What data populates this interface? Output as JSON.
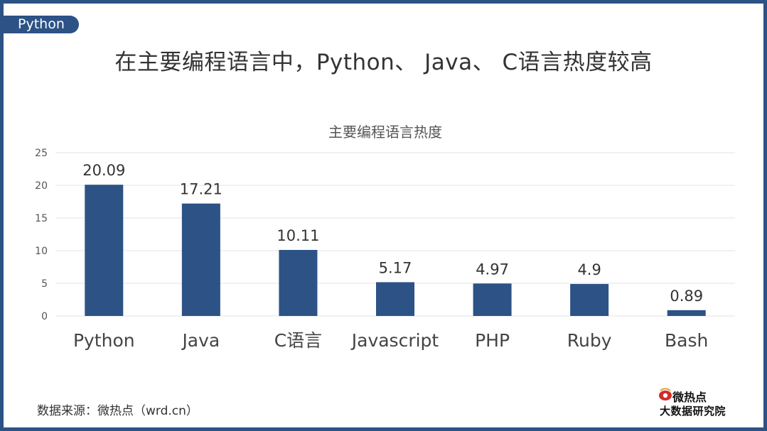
{
  "tag": "Python",
  "title": "在主要编程语言中，Python、 Java、 C语言热度较高",
  "source": "数据来源：微热点（wrd.cn）",
  "logo": {
    "line1": "微热点",
    "line2": "大数据研究院"
  },
  "colors": {
    "accent": "#2c5286",
    "bar": "#2c5286",
    "grid": "#e3e3e3"
  },
  "chart_data": {
    "type": "bar",
    "title": "主要编程语言热度",
    "categories": [
      "Python",
      "Java",
      "C语言",
      "Javascript",
      "PHP",
      "Ruby",
      "Bash"
    ],
    "values": [
      20.09,
      17.21,
      10.11,
      5.17,
      4.97,
      4.9,
      0.89
    ],
    "value_labels": [
      "20.09",
      "17.21",
      "10.11",
      "5.17",
      "4.97",
      "4.9",
      "0.89"
    ],
    "y_ticks": [
      0,
      5,
      10,
      15,
      20,
      25
    ],
    "ylim": [
      0,
      25
    ],
    "grid": true,
    "legend": "none"
  }
}
